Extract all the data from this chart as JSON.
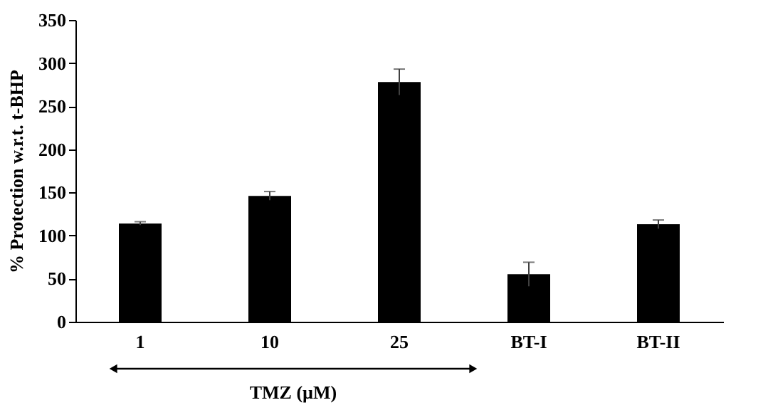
{
  "chart_data": {
    "type": "bar",
    "categories": [
      "1",
      "10",
      "25",
      "BT-I",
      "BT-II"
    ],
    "values": [
      114,
      146,
      278,
      55,
      113
    ],
    "errors": [
      2,
      5,
      15,
      14,
      5
    ],
    "color": "#000000",
    "ylabel": "% Protection w.r.t. t-BHP",
    "ylim": [
      0,
      350
    ],
    "yticks": [
      0,
      50,
      100,
      150,
      200,
      250,
      300,
      350
    ],
    "grid": false,
    "annotations": [
      "TMZ (µM)"
    ]
  }
}
